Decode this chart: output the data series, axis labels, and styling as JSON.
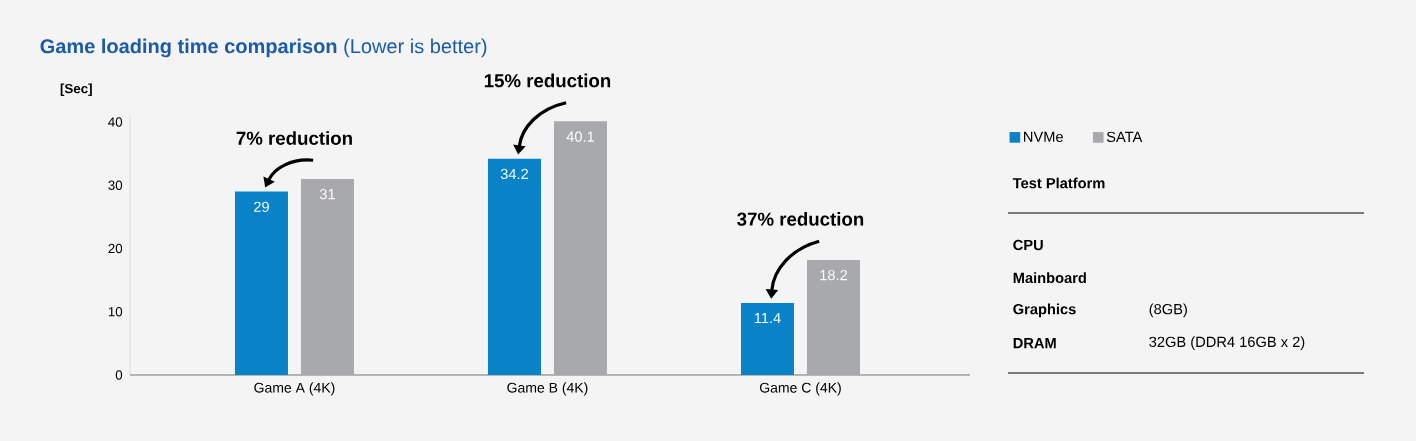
{
  "chart_data": [
    {
      "type": "bar",
      "title": "**Game loading time comparison** (Lower is better)",
      "ylabel": "[Sec]",
      "categories": [
        "Game A (4K)",
        "Game B (4K)",
        "Game C (4K)"
      ],
      "series": [
        {
          "name": "NVMe",
          "color": "#0a82c8",
          "values": [
            29,
            34.2,
            11.4
          ]
        },
        {
          "name": "SATA",
          "color": "#a8a9ad",
          "values": [
            31,
            40.1,
            18.2
          ]
        }
      ],
      "ylim": [
        0,
        41
      ],
      "yticks": [
        0,
        10,
        20,
        30,
        40
      ],
      "data_labels": true,
      "legend": "right",
      "annotations": [
        "7% reduction",
        "15% reduction",
        "37% reduction"
      ]
    },
    {
      "type": "other",
      "title": "Test Platform",
      "categories": [
        "CPU",
        "Mainboard",
        "Graphics",
        "DRAM"
      ],
      "value_labels": [
        null,
        null,
        "(8GB)",
        "32GB (DDR4 16GB x 2)"
      ]
    }
  ]
}
